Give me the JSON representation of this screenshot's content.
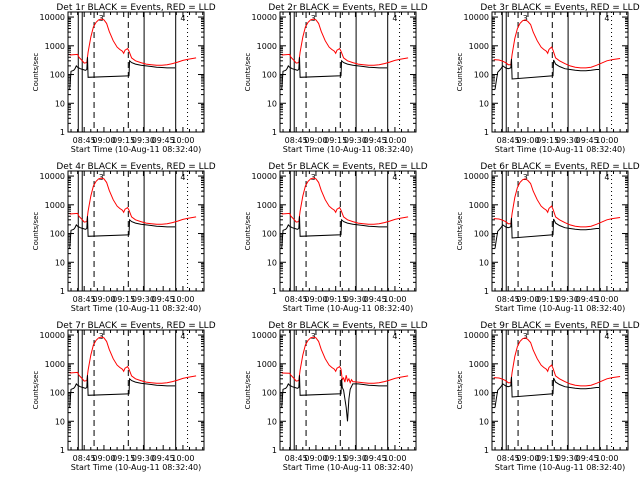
{
  "chart_data": {
    "type": "line",
    "layout": "3x3 grid of panels",
    "x_axis": {
      "label": "Start Time (10-Aug-11 08:32:40)",
      "tick_labels": [
        "08:45",
        "09:00",
        "09:15",
        "09:30",
        "09:45",
        "10:00"
      ],
      "tick_minutes_after_0800": [
        45,
        60,
        75,
        90,
        105,
        120
      ],
      "range_minutes_after_0800": [
        32.7,
        136
      ]
    },
    "y_axis": {
      "label": "Counts/sec",
      "scale": "log",
      "range": [
        1,
        15000
      ],
      "tick_labels": [
        "1",
        "10",
        "100",
        "1000",
        "10000"
      ]
    },
    "series_colors": {
      "events": "#000000",
      "lld": "#ff0000"
    },
    "marker_time_minutes_after_0800": {
      "solid": [
        40.5,
        43.5,
        90.5,
        114.5
      ],
      "dashed": [
        52.5,
        78.5
      ],
      "dotted": [
        123.5
      ],
      "label_3_at": 58.0,
      "label_4_at": 120.0
    },
    "marker_labels": {
      "first": "3",
      "second": "4"
    },
    "panels": [
      {
        "title": "Det 1r BLACK = Events, RED = LLD",
        "profile": "a"
      },
      {
        "title": "Det 2r BLACK = Events, RED = LLD",
        "profile": "a"
      },
      {
        "title": "Det 3r BLACK = Events, RED = LLD",
        "profile": "b"
      },
      {
        "title": "Det 4r BLACK = Events, RED = LLD",
        "profile": "a"
      },
      {
        "title": "Det 5r BLACK = Events, RED = LLD",
        "profile": "a"
      },
      {
        "title": "Det 6r BLACK = Events, RED = LLD",
        "profile": "b"
      },
      {
        "title": "Det 7r BLACK = Events, RED = LLD",
        "profile": "a"
      },
      {
        "title": "Det 8r BLACK = Events, RED = LLD",
        "profile": "c"
      },
      {
        "title": "Det 9r BLACK = Events, RED = LLD",
        "profile": "b"
      }
    ],
    "profiles": {
      "a": {
        "lld": [
          [
            34,
            480
          ],
          [
            40,
            500
          ],
          [
            41,
            400
          ],
          [
            43,
            320
          ],
          [
            45,
            250
          ],
          [
            47,
            260
          ],
          [
            48,
            600
          ],
          [
            50,
            2000
          ],
          [
            52,
            4500
          ],
          [
            54,
            6500
          ],
          [
            56,
            8000
          ],
          [
            58,
            8500
          ],
          [
            60,
            8000
          ],
          [
            62,
            6000
          ],
          [
            64,
            3200
          ],
          [
            67,
            1500
          ],
          [
            70,
            900
          ],
          [
            72,
            750
          ],
          [
            74,
            650
          ],
          [
            75,
            550
          ],
          [
            76,
            700
          ],
          [
            78,
            800
          ],
          [
            79,
            650
          ],
          [
            81,
            380
          ],
          [
            84,
            300
          ],
          [
            88,
            260
          ],
          [
            92,
            230
          ],
          [
            96,
            220
          ],
          [
            100,
            210
          ],
          [
            104,
            210
          ],
          [
            108,
            220
          ],
          [
            112,
            240
          ],
          [
            116,
            270
          ],
          [
            120,
            310
          ],
          [
            124,
            340
          ],
          [
            130,
            380
          ]
        ],
        "events": [
          [
            34,
            30
          ],
          [
            35,
            130
          ],
          [
            37,
            140
          ],
          [
            38,
            160
          ],
          [
            39,
            200
          ],
          [
            40,
            180
          ],
          [
            42,
            160
          ],
          [
            44,
            150
          ],
          [
            46,
            140
          ],
          [
            47,
            150
          ],
          [
            47.5,
            400
          ],
          [
            48,
            80
          ],
          [
            79,
            90
          ],
          [
            79.5,
            300
          ],
          [
            81,
            260
          ],
          [
            84,
            230
          ],
          [
            88,
            210
          ],
          [
            92,
            200
          ],
          [
            96,
            190
          ],
          [
            100,
            180
          ],
          [
            104,
            175
          ],
          [
            108,
            170
          ],
          [
            112,
            170
          ],
          [
            114,
            170
          ]
        ]
      },
      "b": {
        "lld": [
          [
            34,
            330
          ],
          [
            38,
            320
          ],
          [
            40,
            300
          ],
          [
            43,
            260
          ],
          [
            45,
            220
          ],
          [
            47,
            220
          ],
          [
            48,
            500
          ],
          [
            50,
            1800
          ],
          [
            52,
            4000
          ],
          [
            54,
            6000
          ],
          [
            56,
            7500
          ],
          [
            58,
            8000
          ],
          [
            60,
            7000
          ],
          [
            62,
            5500
          ],
          [
            64,
            3000
          ],
          [
            67,
            1500
          ],
          [
            70,
            900
          ],
          [
            72,
            750
          ],
          [
            74,
            650
          ],
          [
            75,
            550
          ],
          [
            76,
            750
          ],
          [
            78,
            900
          ],
          [
            79,
            700
          ],
          [
            81,
            380
          ],
          [
            84,
            300
          ],
          [
            88,
            240
          ],
          [
            92,
            200
          ],
          [
            96,
            180
          ],
          [
            100,
            170
          ],
          [
            104,
            170
          ],
          [
            108,
            180
          ],
          [
            112,
            210
          ],
          [
            116,
            250
          ],
          [
            120,
            300
          ],
          [
            124,
            330
          ],
          [
            130,
            360
          ]
        ],
        "events": [
          [
            35,
            30
          ],
          [
            36,
            60
          ],
          [
            37,
            120
          ],
          [
            39,
            150
          ],
          [
            41,
            200
          ],
          [
            43,
            170
          ],
          [
            45,
            160
          ],
          [
            47,
            170
          ],
          [
            47.5,
            350
          ],
          [
            48,
            70
          ],
          [
            79,
            90
          ],
          [
            79.5,
            320
          ],
          [
            81,
            230
          ],
          [
            84,
            190
          ],
          [
            88,
            160
          ],
          [
            92,
            150
          ],
          [
            96,
            140
          ],
          [
            100,
            135
          ],
          [
            104,
            135
          ],
          [
            108,
            140
          ],
          [
            112,
            150
          ],
          [
            114,
            150
          ]
        ]
      },
      "c": {
        "lld": [
          [
            34,
            480
          ],
          [
            40,
            470
          ],
          [
            41,
            400
          ],
          [
            43,
            320
          ],
          [
            45,
            250
          ],
          [
            47,
            260
          ],
          [
            48,
            600
          ],
          [
            50,
            2000
          ],
          [
            52,
            4500
          ],
          [
            54,
            6500
          ],
          [
            56,
            8000
          ],
          [
            58,
            8500
          ],
          [
            60,
            8000
          ],
          [
            62,
            6000
          ],
          [
            64,
            3200
          ],
          [
            67,
            1500
          ],
          [
            70,
            900
          ],
          [
            72,
            750
          ],
          [
            74,
            650
          ],
          [
            75,
            550
          ],
          [
            76,
            700
          ],
          [
            78,
            800
          ],
          [
            79,
            650
          ],
          [
            80,
            280
          ],
          [
            81,
            320
          ],
          [
            82,
            230
          ],
          [
            83,
            400
          ],
          [
            84,
            250
          ],
          [
            85,
            300
          ],
          [
            86,
            220
          ],
          [
            87,
            280
          ],
          [
            88,
            240
          ],
          [
            92,
            230
          ],
          [
            96,
            220
          ],
          [
            100,
            210
          ],
          [
            104,
            210
          ],
          [
            108,
            220
          ],
          [
            112,
            240
          ],
          [
            116,
            270
          ],
          [
            120,
            310
          ],
          [
            124,
            340
          ],
          [
            130,
            380
          ]
        ],
        "events": [
          [
            34,
            30
          ],
          [
            35,
            130
          ],
          [
            37,
            140
          ],
          [
            38,
            160
          ],
          [
            39,
            200
          ],
          [
            40,
            180
          ],
          [
            42,
            160
          ],
          [
            44,
            150
          ],
          [
            46,
            140
          ],
          [
            47,
            150
          ],
          [
            47.5,
            400
          ],
          [
            48,
            80
          ],
          [
            79,
            90
          ],
          [
            79.5,
            300
          ],
          [
            80,
            150
          ],
          [
            81,
            120
          ],
          [
            82,
            60
          ],
          [
            83,
            30
          ],
          [
            84,
            10
          ],
          [
            85,
            60
          ],
          [
            86,
            130
          ],
          [
            88,
            200
          ],
          [
            92,
            200
          ],
          [
            96,
            190
          ],
          [
            100,
            180
          ],
          [
            104,
            175
          ],
          [
            108,
            170
          ],
          [
            112,
            170
          ],
          [
            114,
            170
          ]
        ]
      }
    }
  }
}
